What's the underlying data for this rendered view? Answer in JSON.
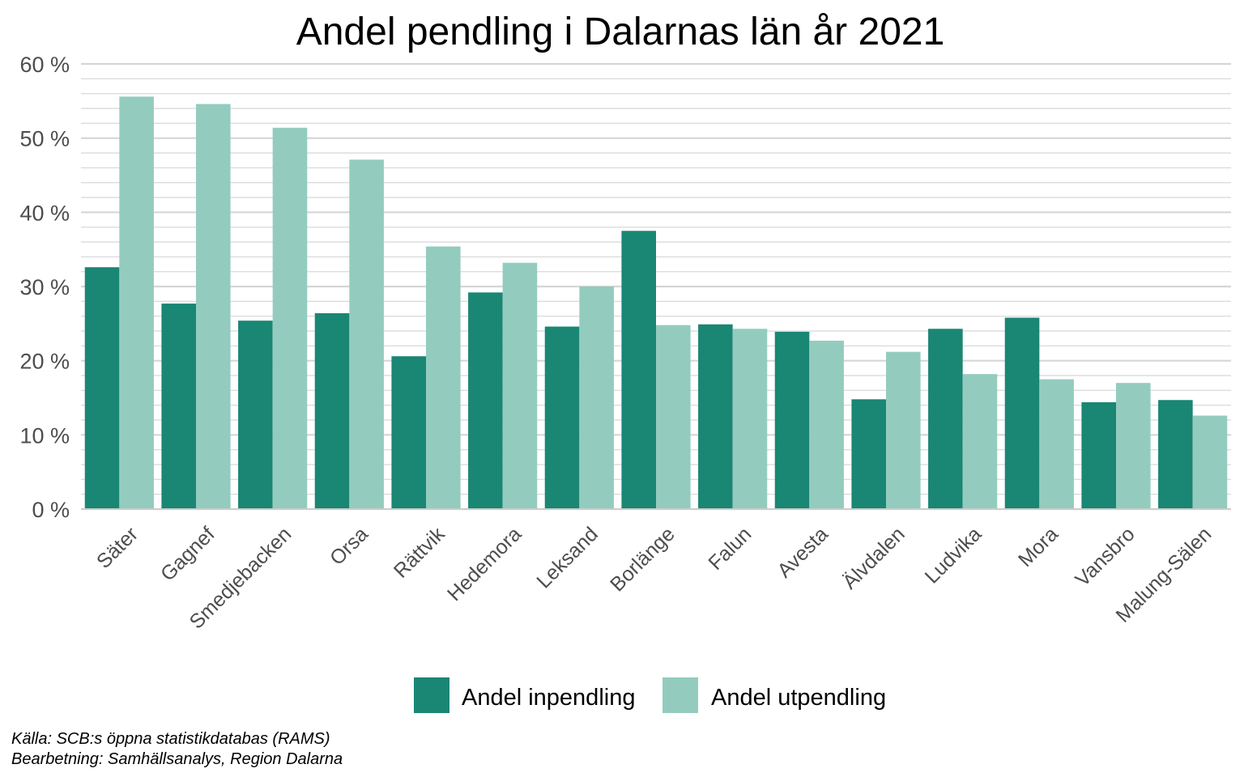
{
  "chart_data": {
    "type": "bar",
    "title": "Andel pendling i Dalarnas län år 2021",
    "xlabel": "",
    "ylabel": "",
    "categories": [
      "Säter",
      "Gagnef",
      "Smedjebacken",
      "Orsa",
      "Rättvik",
      "Hedemora",
      "Leksand",
      "Borlänge",
      "Falun",
      "Avesta",
      "Älvdalen",
      "Ludvika",
      "Mora",
      "Vansbro",
      "Malung-Sälen"
    ],
    "series": [
      {
        "name": "Andel inpendling",
        "color": "#1a8674",
        "values": [
          32.6,
          27.7,
          25.4,
          26.4,
          20.6,
          29.2,
          24.6,
          37.5,
          24.9,
          23.9,
          14.8,
          24.3,
          25.8,
          14.4,
          14.7
        ]
      },
      {
        "name": "Andel utpendling",
        "color": "#93ccbe",
        "values": [
          55.6,
          54.6,
          51.4,
          47.1,
          35.4,
          33.2,
          30.0,
          24.8,
          24.3,
          22.7,
          21.2,
          18.2,
          17.5,
          17.0,
          12.6
        ]
      }
    ],
    "ylim": [
      0,
      60
    ],
    "yticks": [
      0,
      10,
      20,
      30,
      40,
      50,
      60
    ],
    "ytick_labels": [
      "0 %",
      "10 %",
      "20 %",
      "30 %",
      "40 %",
      "50 %",
      "60 %"
    ],
    "minor_grid_step": 2,
    "grid": true,
    "legend_position": "bottom"
  },
  "caption": {
    "line1": "Källa: SCB:s öppna statistikdatabas (RAMS)",
    "line2": "Bearbetning: Samhällsanalys, Region Dalarna"
  }
}
